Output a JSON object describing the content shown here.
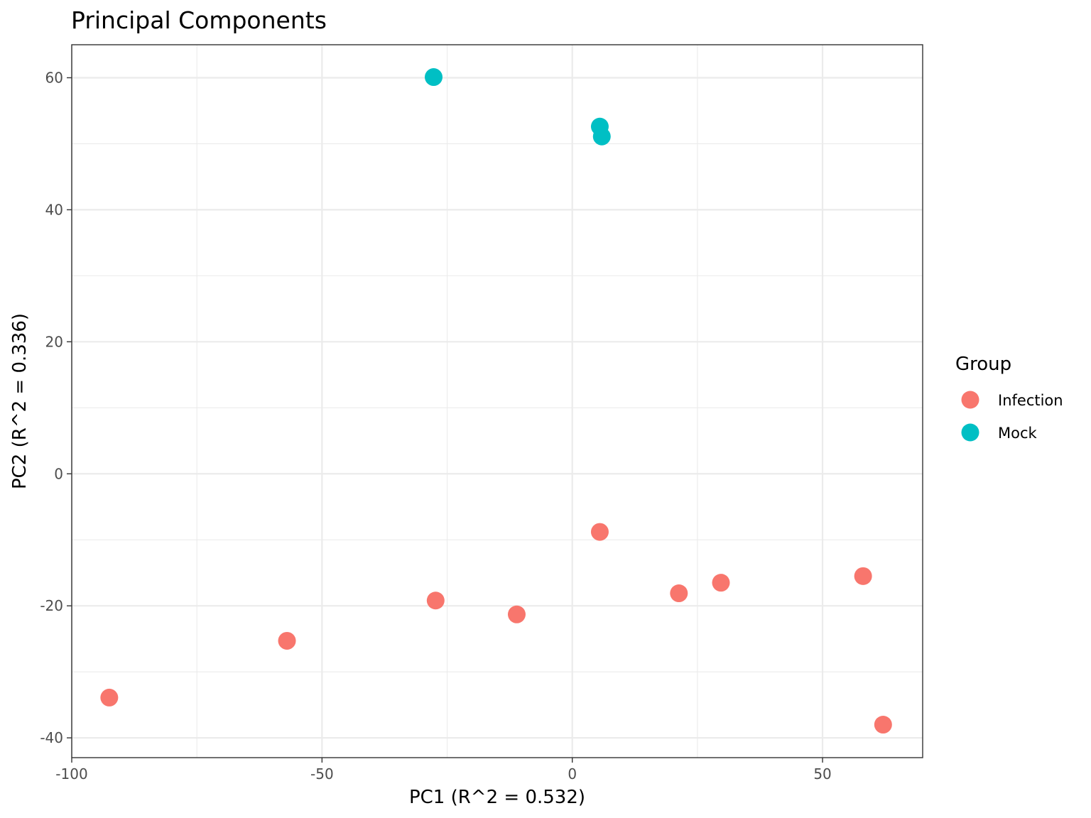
{
  "chart_data": {
    "type": "scatter",
    "title": "Principal Components",
    "xlabel": "PC1 (R^2 = 0.532)",
    "ylabel": "PC2 (R^2 = 0.336)",
    "xlim": [
      -100,
      70
    ],
    "ylim": [
      -43,
      65
    ],
    "x_ticks": [
      -100,
      -50,
      0,
      50
    ],
    "x_tick_labels": [
      "-100",
      "-50",
      "0",
      "50"
    ],
    "y_ticks": [
      -40,
      -20,
      0,
      20,
      40,
      60
    ],
    "y_tick_labels": [
      "-40",
      "-20",
      "0",
      "20",
      "40",
      "60"
    ],
    "grid": true,
    "legend": {
      "title": "Group",
      "position": "right"
    },
    "series": [
      {
        "name": "Infection",
        "color": "#F8766D",
        "points": [
          {
            "x": -92.5,
            "y": -33.9
          },
          {
            "x": -57.0,
            "y": -25.3
          },
          {
            "x": -27.3,
            "y": -19.2
          },
          {
            "x": -11.1,
            "y": -21.3
          },
          {
            "x": 5.5,
            "y": -8.8
          },
          {
            "x": 21.3,
            "y": -18.1
          },
          {
            "x": 29.7,
            "y": -16.5
          },
          {
            "x": 58.1,
            "y": -15.5
          },
          {
            "x": 62.1,
            "y": -38.0
          }
        ]
      },
      {
        "name": "Mock",
        "color": "#00BFC4",
        "points": [
          {
            "x": -27.7,
            "y": 60.1
          },
          {
            "x": 5.5,
            "y": 52.6
          },
          {
            "x": 5.9,
            "y": 51.1
          }
        ]
      }
    ]
  }
}
